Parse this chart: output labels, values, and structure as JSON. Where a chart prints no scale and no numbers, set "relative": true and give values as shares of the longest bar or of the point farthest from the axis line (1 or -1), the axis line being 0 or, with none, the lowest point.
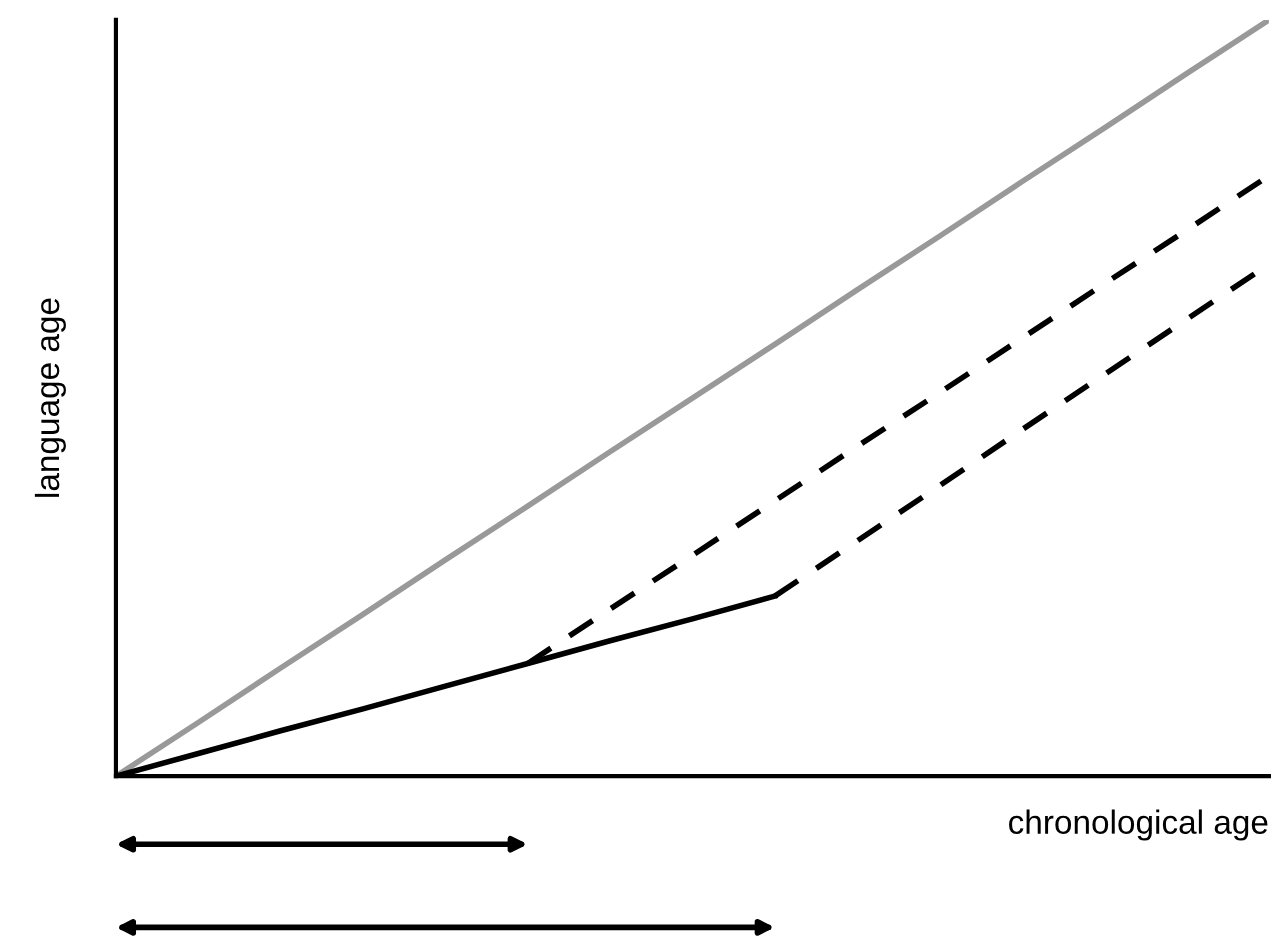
{
  "chart_data": {
    "type": "line",
    "relative": true,
    "xlabel": "chronological age",
    "ylabel": "language age",
    "categories": [
      null,
      null,
      null,
      null,
      null,
      null,
      null,
      null,
      null,
      null,
      null,
      null,
      null,
      null,
      null
    ],
    "series": [
      {
        "color": "#999999",
        "line_style": "solid",
        "values": [
          0,
          0.071,
          0.143,
          0.214,
          0.286,
          0.357,
          0.429,
          0.5,
          0.571,
          0.643,
          0.714,
          0.786,
          0.857,
          0.929,
          1
        ]
      },
      {
        "color": "#000000",
        "line_style": "solid",
        "values": [
          0,
          0.03,
          0.06,
          0.089,
          0.119,
          0.149,
          0.179,
          0.208,
          0.238,
          null,
          null,
          null,
          null,
          null,
          null
        ]
      },
      {
        "color": "#000000",
        "line_style": "dashed",
        "values": [
          null,
          null,
          null,
          null,
          null,
          0.149,
          0.221,
          0.292,
          0.364,
          0.436,
          0.507,
          0.579,
          0.651,
          0.722,
          0.794
        ]
      },
      {
        "color": "#000000",
        "line_style": "dashed",
        "values": [
          null,
          null,
          null,
          null,
          null,
          null,
          null,
          null,
          0.238,
          0.311,
          0.384,
          0.458,
          0.531,
          0.604,
          0.677
        ]
      }
    ],
    "legend": false
  }
}
